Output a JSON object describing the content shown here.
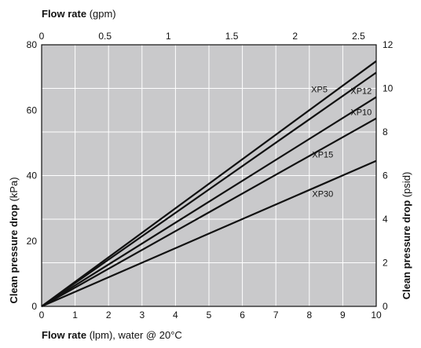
{
  "chart_data": {
    "type": "line",
    "title": "",
    "x_bottom": {
      "label_main": "Flow rate",
      "label_unit": " (lpm), water @ 20°C",
      "range": [
        0,
        10
      ],
      "ticks": [
        "0",
        "1",
        "2",
        "3",
        "4",
        "5",
        "6",
        "7",
        "8",
        "9",
        "10"
      ]
    },
    "x_top": {
      "label_main": "Flow rate",
      "label_unit": " (gpm)",
      "range": [
        0,
        2.64
      ],
      "ticks": [
        "0",
        "0.5",
        "1",
        "1.5",
        "2",
        "2.5"
      ]
    },
    "y_left": {
      "label_main": "Clean pressure drop",
      "label_unit": " (kPa)",
      "range": [
        0,
        80
      ],
      "ticks": [
        "0",
        "20",
        "40",
        "60",
        "80"
      ]
    },
    "y_right": {
      "label_main": "Clean pressure drop",
      "label_unit": " (psid)",
      "range": [
        0,
        12
      ],
      "ticks": [
        "0",
        "2",
        "4",
        "6",
        "8",
        "10",
        "12"
      ]
    },
    "grid": true,
    "plot_background": "#c9c9cb",
    "line_color": "#111111",
    "series": [
      {
        "name": "XP5",
        "x": [
          0,
          10
        ],
        "y": [
          0,
          75
        ]
      },
      {
        "name": "XP12",
        "x": [
          0,
          10
        ],
        "y": [
          0,
          71.5
        ]
      },
      {
        "name": "XP10",
        "x": [
          0,
          10
        ],
        "y": [
          0,
          64
        ]
      },
      {
        "name": "XP15",
        "x": [
          0,
          10
        ],
        "y": [
          0,
          57.5
        ]
      },
      {
        "name": "XP30",
        "x": [
          0,
          10
        ],
        "y": [
          0,
          44.5
        ]
      }
    ],
    "annotations": [
      {
        "text": "XP5",
        "x": 8.3,
        "y": 65.5
      },
      {
        "text": "XP12",
        "x": 9.55,
        "y": 65.0
      },
      {
        "text": "XP10",
        "x": 9.55,
        "y": 58.5
      },
      {
        "text": "XP15",
        "x": 8.4,
        "y": 45.5
      },
      {
        "text": "XP30",
        "x": 8.4,
        "y": 33.5
      }
    ]
  }
}
